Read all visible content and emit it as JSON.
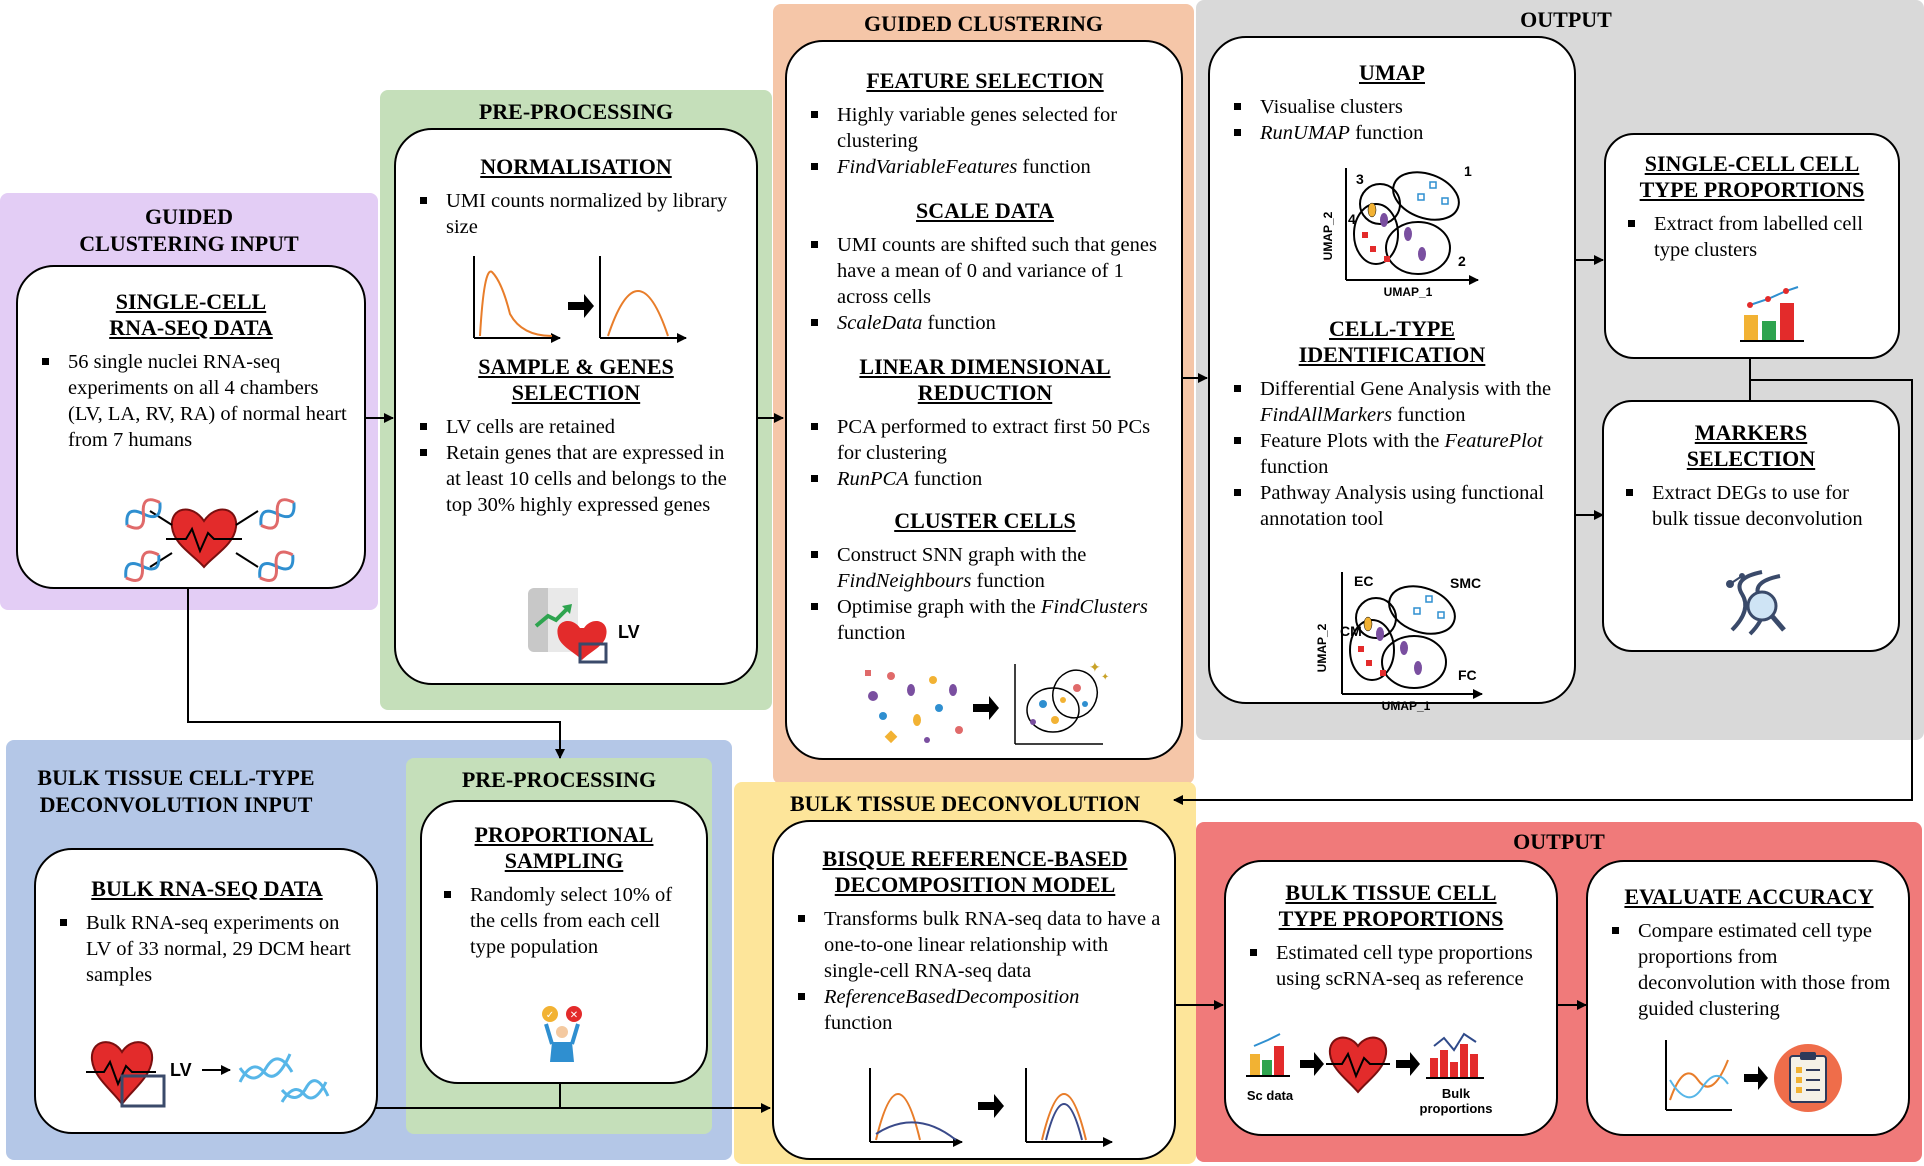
{
  "panels": {
    "gci": {
      "title": "GUIDED\nCLUSTERING INPUT",
      "bg": "#e3cdf5"
    },
    "prep1": {
      "title": "PRE-PROCESSING",
      "bg": "#c5dfba"
    },
    "gc": {
      "title": "GUIDED CLUSTERING",
      "bg": "#f5c6a8"
    },
    "out1": {
      "title": "OUTPUT",
      "bg": "#d9d9d9"
    },
    "btdi": {
      "title": "BULK TISSUE CELL-TYPE\nDECONVOLUTION INPUT",
      "bg": "#b4c7e7"
    },
    "prep2": {
      "title": "PRE-PROCESSING",
      "bg": "#c5dfba"
    },
    "btd": {
      "title": "BULK TISSUE DECONVOLUTION",
      "bg": "#fde59a"
    },
    "out2": {
      "title": "OUTPUT",
      "bg": "#f07a7a"
    }
  },
  "scrna": {
    "heading": "SINGLE-CELL\nRNA-SEQ DATA",
    "bullets": [
      "56 single nuclei RNA-seq experiments on all 4 chambers (LV, LA, RV, RA) of normal heart from 7 humans"
    ]
  },
  "norm": {
    "heading": "NORMALISATION",
    "bullets": [
      "UMI counts normalized by library size"
    ]
  },
  "sample": {
    "heading": "SAMPLE & GENES\nSELECTION",
    "bullets": [
      "LV cells are retained",
      "Retain genes that are expressed in at least 10 cells and belongs to the top 30% highly expressed genes"
    ],
    "icon_label": "LV"
  },
  "feature": {
    "heading": "FEATURE SELECTION",
    "b1": "Highly variable genes selected for clustering",
    "b2_fn": "FindVariableFeatures",
    "b2_tail": " function"
  },
  "scale": {
    "heading": "SCALE DATA",
    "b1": "UMI counts are shifted such that genes have a mean of 0 and variance of 1 across cells",
    "b2_fn": "ScaleData",
    "b2_tail": " function"
  },
  "linear": {
    "heading": "LINEAR DIMENSIONAL\nREDUCTION",
    "b1": "PCA performed to extract first 50 PCs for clustering",
    "b2_fn": "RunPCA",
    "b2_tail": " function"
  },
  "cluster": {
    "heading": "CLUSTER CELLS",
    "b1_pre": "Construct SNN graph with the ",
    "b1_fn": "FindNeighbours",
    "b1_tail": " function",
    "b2_pre": "Optimise graph with the ",
    "b2_fn": "FindClusters",
    "b2_tail": " function"
  },
  "umap": {
    "heading": "UMAP",
    "b1": "Visualise clusters",
    "b2_fn": "RunUMAP",
    "b2_tail": " function",
    "ylabel": "UMAP_2",
    "xlabel": "UMAP_1",
    "n1": "1",
    "n2": "2",
    "n3": "3",
    "n4": "4"
  },
  "celltype": {
    "heading": "CELL-TYPE\nIDENTIFICATION",
    "b1_pre": "Differential Gene Analysis with the ",
    "b1_fn": "FindAllMarkers",
    "b1_tail": " function",
    "b2_pre": "Feature Plots with the ",
    "b2_fn": "FeaturePlot",
    "b2_tail": " function",
    "b3": "Pathway Analysis using functional annotation tool",
    "ylabel": "UMAP_2",
    "xlabel": "UMAP_1",
    "ec": "EC",
    "smc": "SMC",
    "cm": "CM",
    "fc": "FC"
  },
  "scprop": {
    "heading": "SINGLE-CELL CELL\nTYPE PROPORTIONS",
    "bullets": [
      "Extract from labelled cell type clusters"
    ]
  },
  "markers": {
    "heading": "MARKERS\nSELECTION",
    "bullets": [
      "Extract DEGs to use for bulk tissue deconvolution"
    ]
  },
  "bulk": {
    "heading": "BULK RNA-SEQ DATA",
    "bullets": [
      "Bulk RNA-seq experiments on LV of 33 normal, 29 DCM heart samples"
    ],
    "icon_label": "LV"
  },
  "propsamp": {
    "heading": "PROPORTIONAL\nSAMPLING",
    "bullets": [
      "Randomly select 10% of the cells from each cell type population"
    ]
  },
  "bisque": {
    "heading": "BISQUE REFERENCE-BASED\nDECOMPOSITION MODEL",
    "b1": "Transforms bulk RNA-seq data to have a one-to-one linear relationship with single-cell RNA-seq data",
    "b2_fn": "ReferenceBasedDecomposition",
    "b2_tail": "function"
  },
  "bulkprop": {
    "heading": "BULK TISSUE CELL\nTYPE PROPORTIONS",
    "bullets": [
      "Estimated cell type proportions using scRNA-seq as reference"
    ],
    "sc_label": "Sc data",
    "bulk_label": "Bulk\nproportions"
  },
  "evaluate": {
    "heading": "EVALUATE ACCURACY",
    "bullets": [
      "Compare estimated cell type proportions from deconvolution with those from guided clustering"
    ]
  }
}
